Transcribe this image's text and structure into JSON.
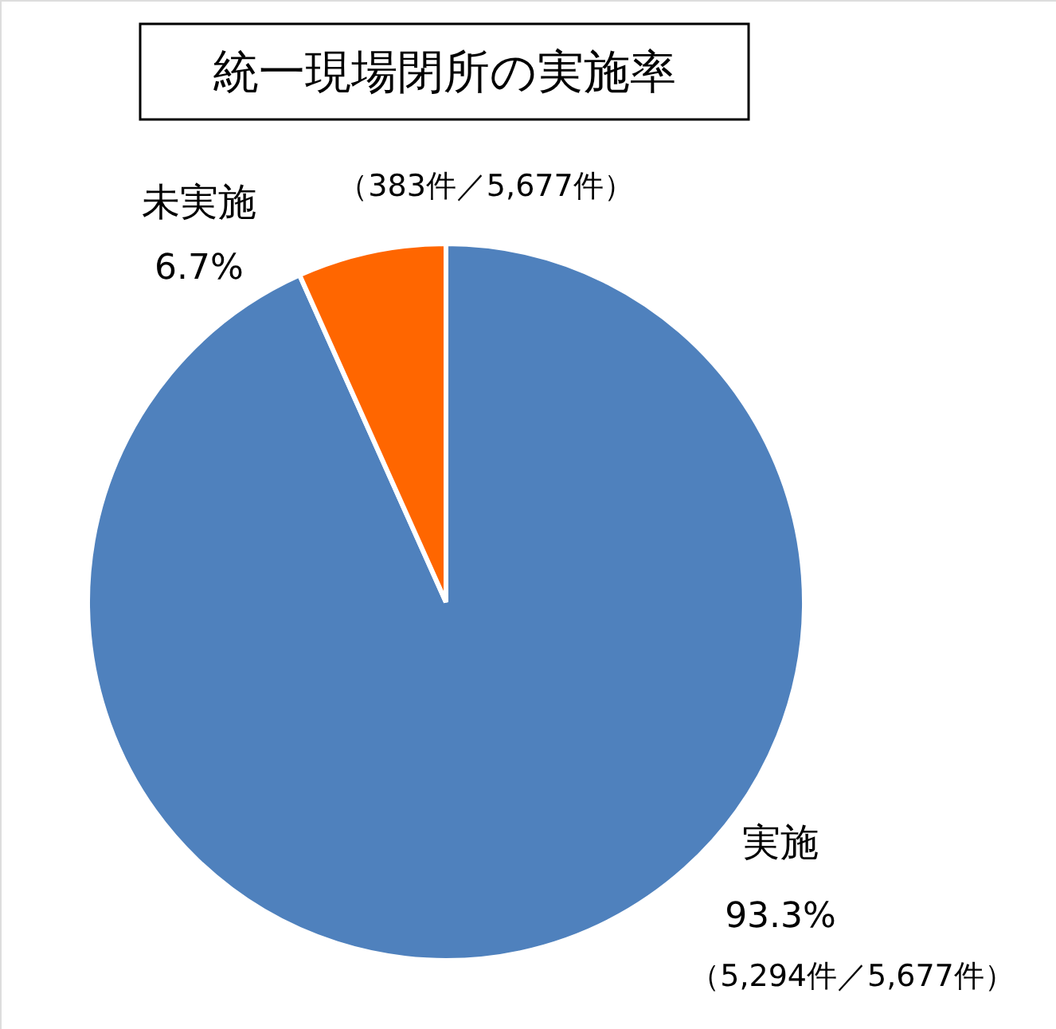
{
  "chart_data": {
    "type": "pie",
    "title": "統一現場閉所の実施率",
    "categories": [
      "実施",
      "未実施"
    ],
    "values": [
      93.3,
      6.7
    ],
    "colors": [
      "#4f81bd",
      "#ff6600"
    ],
    "value_labels": [
      "93.3%",
      "6.7%"
    ],
    "annotations": [
      "（5,294件／5,677件）",
      "（383件／5,677件）"
    ]
  }
}
